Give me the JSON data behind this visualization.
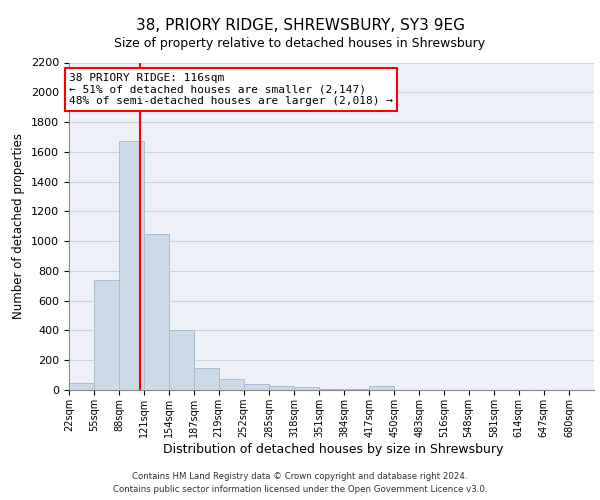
{
  "title1": "38, PRIORY RIDGE, SHREWSBURY, SY3 9EG",
  "title2": "Size of property relative to detached houses in Shrewsbury",
  "xlabel": "Distribution of detached houses by size in Shrewsbury",
  "ylabel": "Number of detached properties",
  "footnote": "Contains HM Land Registry data © Crown copyright and database right 2024.\nContains public sector information licensed under the Open Government Licence v3.0.",
  "bin_labels": [
    "22sqm",
    "55sqm",
    "88sqm",
    "121sqm",
    "154sqm",
    "187sqm",
    "219sqm",
    "252sqm",
    "285sqm",
    "318sqm",
    "351sqm",
    "384sqm",
    "417sqm",
    "450sqm",
    "483sqm",
    "516sqm",
    "548sqm",
    "581sqm",
    "614sqm",
    "647sqm",
    "680sqm"
  ],
  "bin_edges": [
    22,
    55,
    88,
    121,
    154,
    187,
    219,
    252,
    285,
    318,
    351,
    384,
    417,
    450,
    483,
    516,
    548,
    581,
    614,
    647,
    680,
    713
  ],
  "bar_heights": [
    50,
    740,
    1670,
    1050,
    400,
    145,
    75,
    42,
    30,
    20,
    10,
    5,
    25,
    0,
    0,
    0,
    0,
    0,
    0,
    0,
    0
  ],
  "bar_color": "#ccd9e8",
  "bar_edge_color": "#a8bece",
  "property_size": 116,
  "annotation_text": "38 PRIORY RIDGE: 116sqm\n← 51% of detached houses are smaller (2,147)\n48% of semi-detached houses are larger (2,018) →",
  "annotation_box_color": "white",
  "annotation_box_edge_color": "red",
  "red_line_color": "red",
  "ylim": [
    0,
    2200
  ],
  "yticks": [
    0,
    200,
    400,
    600,
    800,
    1000,
    1200,
    1400,
    1600,
    1800,
    2000,
    2200
  ],
  "grid_color": "#c8d4e4",
  "background_color": "#eef2f8"
}
